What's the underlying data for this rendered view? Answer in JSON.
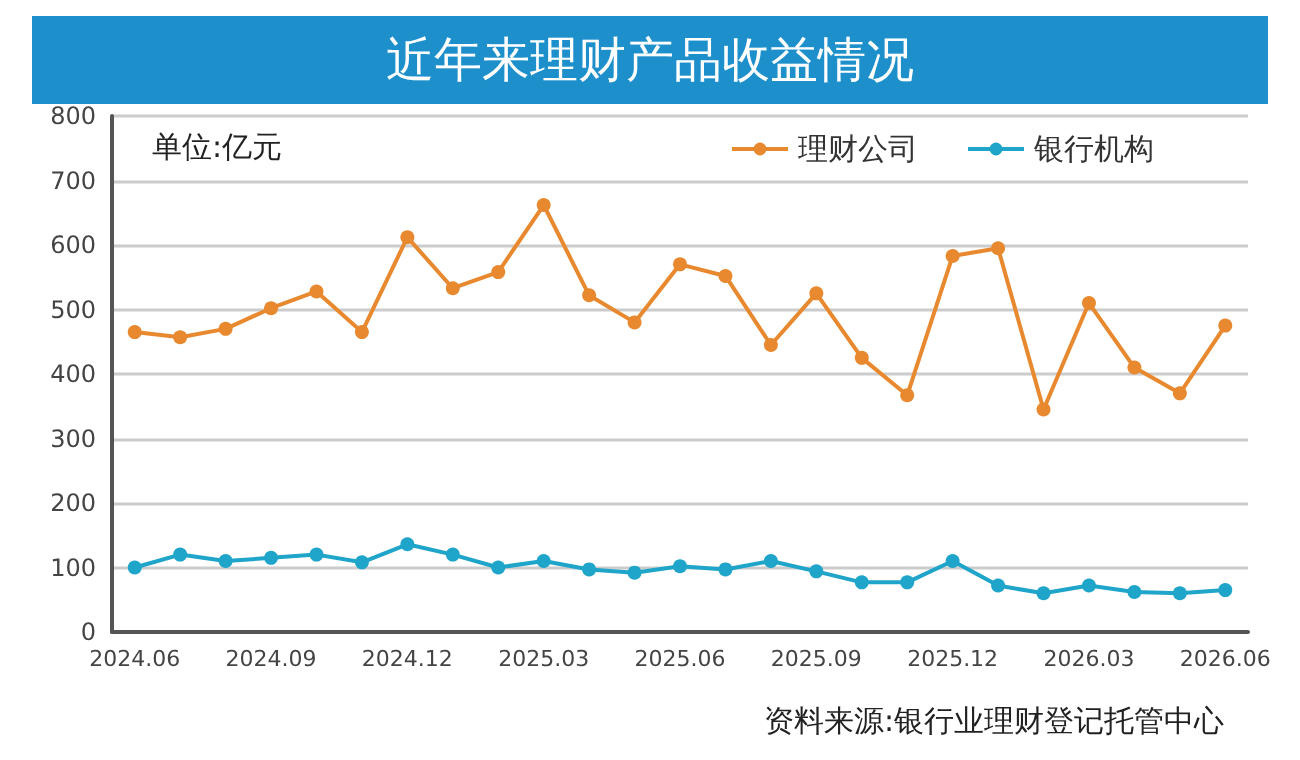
{
  "chart_data": {
    "type": "line",
    "title": "近年来理财产品收益情况",
    "annotations": [
      "单位:亿元",
      "资料来源:银行业理财登记托管中心"
    ],
    "categories": [
      "2024.06",
      null,
      null,
      "2024.09",
      null,
      null,
      "2024.12",
      null,
      null,
      "2025.03",
      null,
      null,
      "2025.06",
      null,
      null,
      "2025.09",
      null,
      null,
      "2025.12",
      null,
      null,
      "2026.03",
      null,
      null,
      "2026.06"
    ],
    "series": [
      {
        "name": "理财公司",
        "color": "#e8892f",
        "values": [
          465,
          457,
          470,
          502,
          528,
          465,
          612,
          533,
          558,
          662,
          522,
          480,
          570,
          552,
          445,
          525,
          425,
          367,
          583,
          595,
          345,
          510,
          410,
          370,
          475
        ]
      },
      {
        "name": "银行机构",
        "color": "#1ea5c9",
        "values": [
          100,
          120,
          110,
          115,
          120,
          108,
          136,
          120,
          100,
          110,
          97,
          92,
          102,
          97,
          110,
          94,
          77,
          77,
          110,
          72,
          60,
          72,
          62,
          60,
          65
        ]
      }
    ],
    "ylim": [
      0,
      800
    ],
    "yticks": [
      0,
      100,
      200,
      300,
      400,
      500,
      600,
      700,
      800
    ],
    "grid": "y",
    "legend": "top right",
    "marker": "circle",
    "line_style": "solid"
  }
}
